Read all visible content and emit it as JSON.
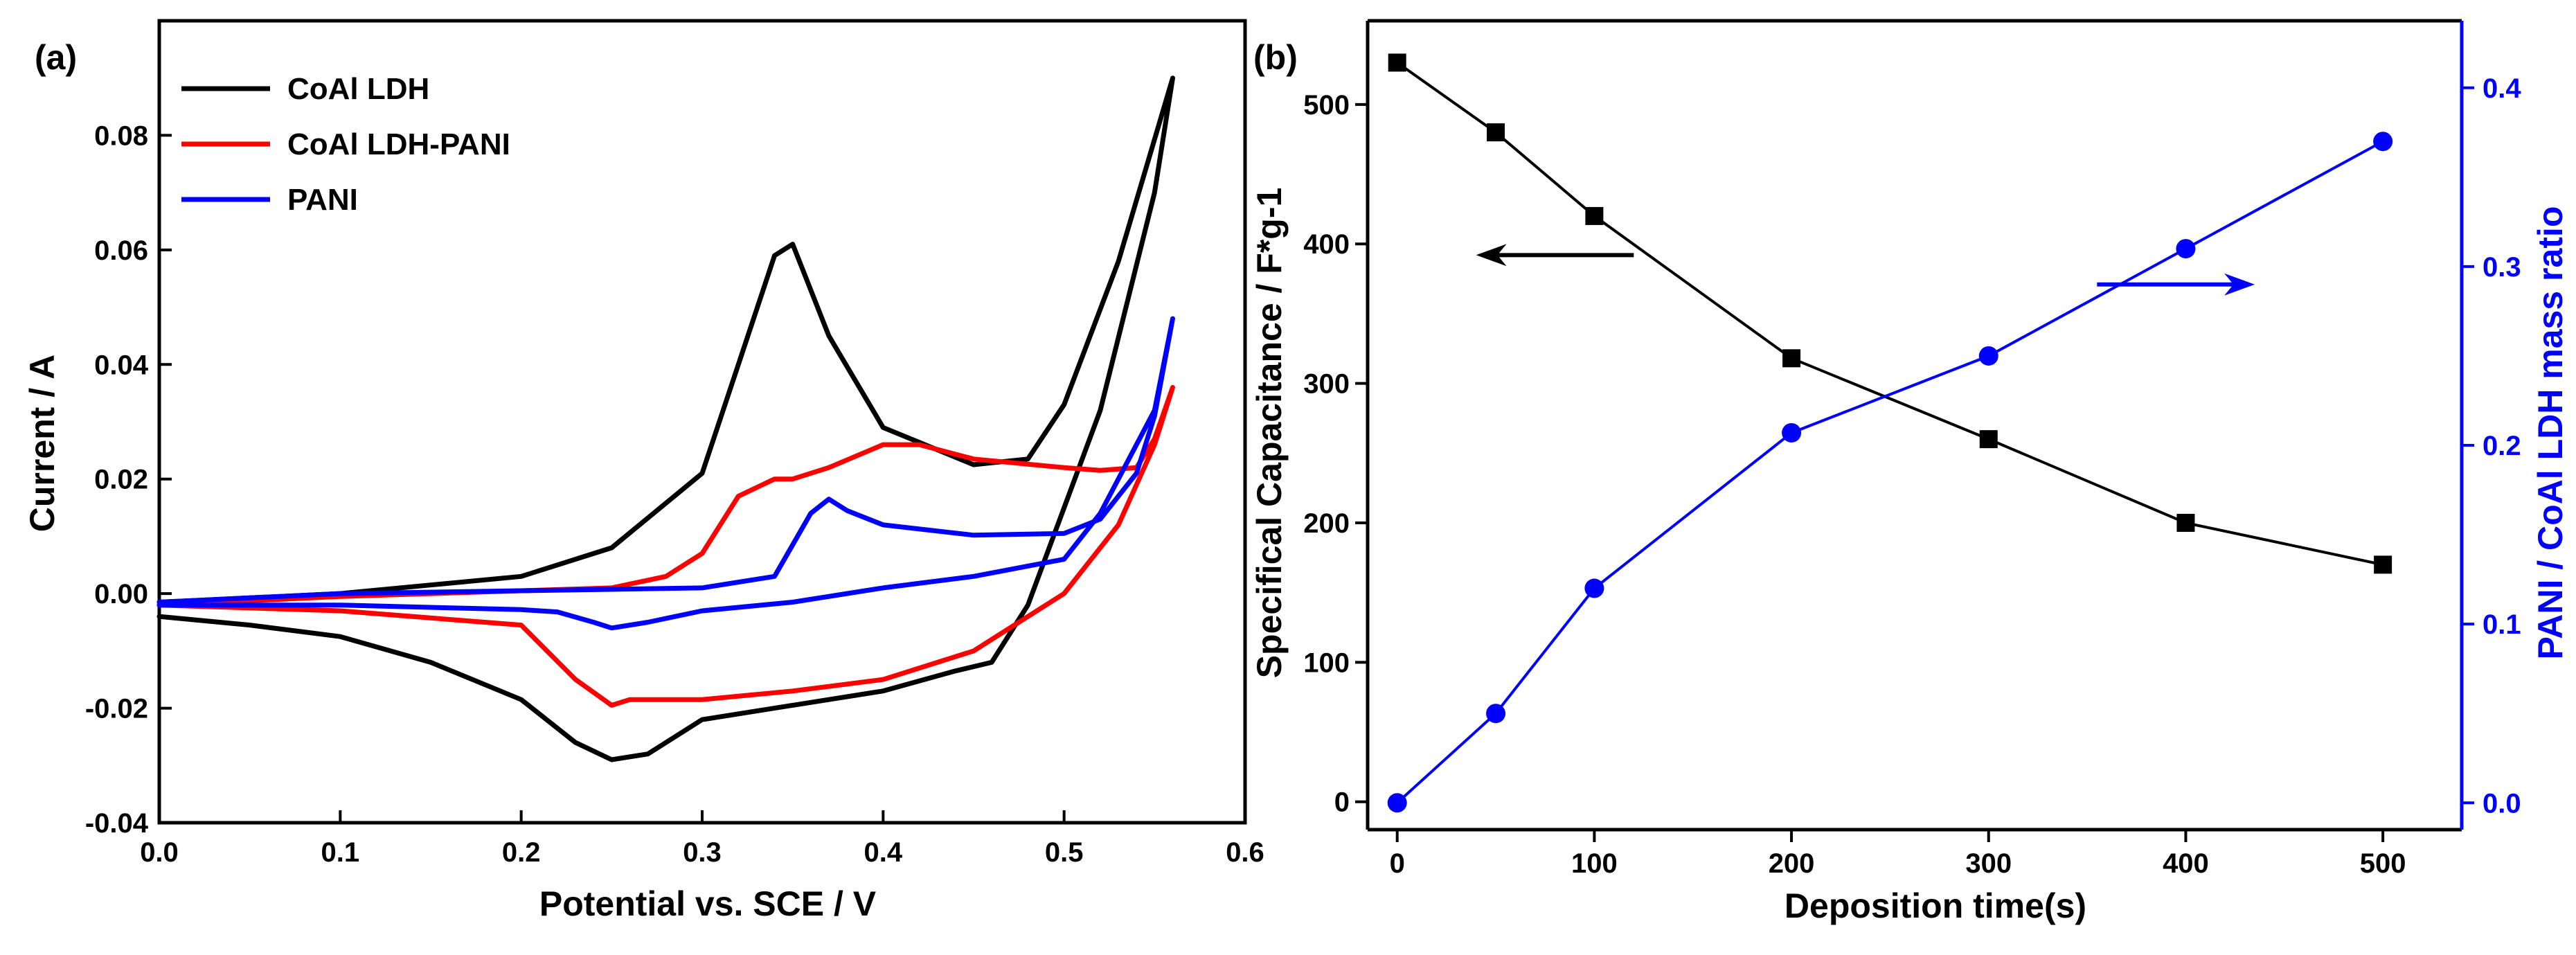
{
  "chart_data": [
    {
      "panel_label": "(a)",
      "type": "line",
      "title": "",
      "xlabel": "Potential vs. SCE / V",
      "ylabel": "Current / A",
      "xlim": [
        0.0,
        0.6
      ],
      "ylim": [
        -0.04,
        0.1
      ],
      "xticks": [
        0.0,
        0.1,
        0.2,
        0.3,
        0.4,
        0.5,
        0.6
      ],
      "xtick_labels": [
        "0.0",
        "0.1",
        "0.2",
        "0.3",
        "0.4",
        "0.5",
        "0.6"
      ],
      "yticks": [
        -0.04,
        -0.02,
        0.0,
        0.02,
        0.04,
        0.06,
        0.08
      ],
      "ytick_labels": [
        "-0.04",
        "-0.02",
        "0.00",
        "0.02",
        "0.04",
        "0.06",
        "0.08"
      ],
      "legend_position": "top-left",
      "series": [
        {
          "name": "CoAl LDH",
          "color": "#000000",
          "x": [
            0.0,
            0.1,
            0.15,
            0.2,
            0.25,
            0.3,
            0.32,
            0.34,
            0.35,
            0.37,
            0.4,
            0.45,
            0.48,
            0.5,
            0.53,
            0.56,
            0.55,
            0.52,
            0.5,
            0.48,
            0.46,
            0.44,
            0.4,
            0.35,
            0.3,
            0.27,
            0.25,
            0.23,
            0.2,
            0.15,
            0.1,
            0.05,
            0.0
          ],
          "values": [
            -0.0015,
            0.0,
            0.0015,
            0.003,
            0.008,
            0.021,
            0.04,
            0.059,
            0.061,
            0.045,
            0.029,
            0.0225,
            0.0235,
            0.033,
            0.058,
            0.09,
            0.07,
            0.032,
            0.015,
            -0.002,
            -0.012,
            -0.0135,
            -0.017,
            -0.0195,
            -0.022,
            -0.028,
            -0.029,
            -0.026,
            -0.0185,
            -0.012,
            -0.0075,
            -0.0055,
            -0.004
          ]
        },
        {
          "name": "CoAl LDH-PANI",
          "color": "#ff0000",
          "x": [
            0.0,
            0.1,
            0.2,
            0.25,
            0.28,
            0.3,
            0.32,
            0.34,
            0.35,
            0.37,
            0.4,
            0.42,
            0.45,
            0.5,
            0.52,
            0.54,
            0.55,
            0.56,
            0.55,
            0.53,
            0.5,
            0.45,
            0.4,
            0.35,
            0.3,
            0.28,
            0.26,
            0.25,
            0.23,
            0.2,
            0.1,
            0.0
          ],
          "values": [
            -0.002,
            -0.0005,
            0.0005,
            0.001,
            0.003,
            0.007,
            0.017,
            0.02,
            0.02,
            0.022,
            0.026,
            0.026,
            0.0235,
            0.022,
            0.0215,
            0.022,
            0.027,
            0.036,
            0.026,
            0.012,
            0.0,
            -0.01,
            -0.015,
            -0.017,
            -0.0185,
            -0.0185,
            -0.0185,
            -0.0195,
            -0.015,
            -0.0055,
            -0.003,
            -0.002
          ]
        },
        {
          "name": "PANI",
          "color": "#0000ff",
          "x": [
            0.0,
            0.1,
            0.2,
            0.3,
            0.34,
            0.36,
            0.37,
            0.38,
            0.4,
            0.45,
            0.5,
            0.52,
            0.54,
            0.55,
            0.56,
            0.55,
            0.52,
            0.5,
            0.45,
            0.4,
            0.35,
            0.3,
            0.27,
            0.25,
            0.24,
            0.22,
            0.2,
            0.1,
            0.0
          ],
          "values": [
            -0.0015,
            0.0,
            0.0005,
            0.001,
            0.003,
            0.014,
            0.0165,
            0.0145,
            0.012,
            0.0102,
            0.0105,
            0.013,
            0.021,
            0.031,
            0.048,
            0.032,
            0.014,
            0.006,
            0.003,
            0.001,
            -0.0015,
            -0.003,
            -0.005,
            -0.006,
            -0.005,
            -0.0032,
            -0.0028,
            -0.002,
            -0.002
          ]
        }
      ]
    },
    {
      "panel_label": "(b)",
      "type": "line",
      "title": "",
      "xlabel": "Deposition time(s)",
      "ylabel_left": "Specifical Capacitance / F*g-1",
      "ylabel_right": "PANI / CoAl LDH mass ratio",
      "xlim": [
        -15,
        540
      ],
      "ylim_left": [
        -20,
        560
      ],
      "ylim_right": [
        -0.015,
        0.4375
      ],
      "xticks": [
        0,
        100,
        200,
        300,
        400,
        500
      ],
      "xtick_labels": [
        "0",
        "100",
        "200",
        "300",
        "400",
        "500"
      ],
      "yticks_left": [
        0,
        100,
        200,
        300,
        400,
        500
      ],
      "ytick_labels_left": [
        "0",
        "100",
        "200",
        "300",
        "400",
        "500"
      ],
      "yticks_right": [
        0.0,
        0.1,
        0.2,
        0.3,
        0.4
      ],
      "ytick_labels_right": [
        "0.0",
        "0.1",
        "0.2",
        "0.3",
        "0.4"
      ],
      "right_axis_color": "#0000ff",
      "annotations": [
        {
          "type": "arrow",
          "direction": "left",
          "axis": "left",
          "color": "#000000",
          "x_from": 120,
          "x_to": 40,
          "y": 392
        },
        {
          "type": "arrow",
          "direction": "right",
          "axis": "right",
          "color": "#0000ff",
          "x_from": 355,
          "x_to": 435,
          "y": 0.29
        }
      ],
      "series": [
        {
          "name": "Specifical Capacitance",
          "axis": "left",
          "color": "#000000",
          "marker": "square",
          "x": [
            0,
            50,
            100,
            200,
            300,
            400,
            500
          ],
          "values": [
            530,
            480,
            420,
            318,
            260,
            200,
            170
          ]
        },
        {
          "name": "PANI / CoAl LDH mass ratio",
          "axis": "right",
          "color": "#0000ff",
          "marker": "circle",
          "x": [
            0,
            50,
            100,
            200,
            300,
            400,
            500
          ],
          "values": [
            0.0,
            0.05,
            0.12,
            0.207,
            0.25,
            0.31,
            0.37
          ]
        }
      ]
    }
  ]
}
